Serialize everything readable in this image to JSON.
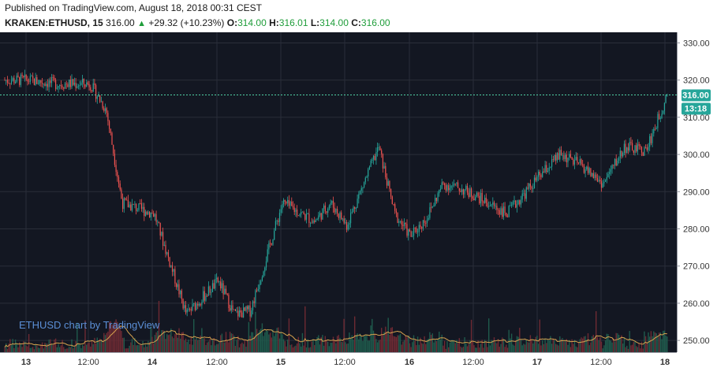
{
  "header": {
    "published": "Published on TradingView.com, August 18, 2018 00:31 CEST",
    "symbol": "KRAKEN:ETHUSD, 15",
    "last": "316.00",
    "change_arrow": "▲",
    "change": "+29.32 (+10.23%)",
    "o_label": "O:",
    "o_value": "314.00",
    "h_label": "H:",
    "h_value": "316.01",
    "l_label": "L:",
    "l_value": "314.00",
    "c_label": "C:",
    "c_value": "316.00"
  },
  "watermark": "ETHUSD chart by TradingView",
  "price_tag": "316.00",
  "countdown_tag": "13:18",
  "colors": {
    "background": "#131722",
    "up": "#26a69a",
    "down": "#ef5350",
    "volume_up": "#1f5a4c",
    "volume_down": "#6e2a33",
    "volume_ma": "#d6a24e",
    "current_line": "#4fd1a5",
    "grid": "#2a2e39"
  },
  "chart_data": {
    "type": "line",
    "xlabel": "",
    "ylabel": "",
    "ylim": [
      246,
      332
    ],
    "y_ticks": [
      "330.00",
      "320.00",
      "310.00",
      "300.00",
      "290.00",
      "280.00",
      "270.00",
      "260.00",
      "250.00"
    ],
    "x_ticks": [
      "13",
      "12:00",
      "14",
      "12:00",
      "15",
      "12:00",
      "16",
      "12:00",
      "17",
      "12:00",
      "18"
    ],
    "x": [
      "13 00:00",
      "13 06:00",
      "13 12:00",
      "13 15:00",
      "13 18:00",
      "14 00:00",
      "14 06:00",
      "14 12:00",
      "14 15:00",
      "14 18:00",
      "15 00:00",
      "15 06:00",
      "15 09:00",
      "15 12:00",
      "15 18:00",
      "15 21:00",
      "16 00:00",
      "16 03:00",
      "16 06:00",
      "16 09:00",
      "16 12:00",
      "16 18:00",
      "17 00:00",
      "17 04:00",
      "17 08:00",
      "17 12:00",
      "17 16:00",
      "17 20:00",
      "18 00:00"
    ],
    "series": [
      {
        "values": [
          320,
          319,
          319,
          312,
          287,
          284,
          257,
          266,
          257,
          258,
          287,
          282,
          287,
          281,
          302,
          284,
          278,
          283,
          292,
          291,
          289,
          284,
          294,
          300,
          297,
          292,
          302,
          301,
          316
        ]
      }
    ]
  }
}
